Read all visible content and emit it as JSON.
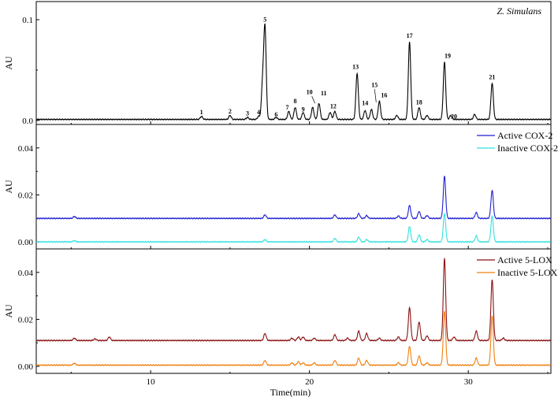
{
  "chart_data": [
    {
      "type": "line",
      "annotation": "Z. Simulans",
      "ylabel": "AU",
      "xlim": [
        2.8,
        35.2
      ],
      "ylim": [
        -0.004,
        0.118
      ],
      "yticks": [
        0.0,
        0.1
      ],
      "ytick_labels": [
        "0.0",
        "0.1"
      ],
      "grid": false,
      "series": [
        {
          "color": "#000000",
          "baseline": 0.001,
          "peaks": [
            [
              13.2,
              0.003
            ],
            [
              15.0,
              0.004
            ],
            [
              16.1,
              0.002
            ],
            [
              16.8,
              0.003
            ],
            [
              17.05,
              0.035
            ],
            [
              17.2,
              0.09
            ],
            [
              17.9,
              0.002
            ],
            [
              18.7,
              0.008
            ],
            [
              19.1,
              0.012
            ],
            [
              19.6,
              0.007
            ],
            [
              20.2,
              0.012
            ],
            [
              20.6,
              0.016
            ],
            [
              21.3,
              0.007
            ],
            [
              21.6,
              0.008
            ],
            [
              23.0,
              0.046
            ],
            [
              23.5,
              0.009
            ],
            [
              23.9,
              0.01
            ],
            [
              24.4,
              0.018
            ],
            [
              25.5,
              0.004
            ],
            [
              26.3,
              0.077
            ],
            [
              26.9,
              0.012
            ],
            [
              27.4,
              0.004
            ],
            [
              28.5,
              0.057
            ],
            [
              28.9,
              0.004
            ],
            [
              30.4,
              0.005
            ],
            [
              31.5,
              0.036
            ]
          ]
        }
      ],
      "peak_labels": [
        {
          "text": "1",
          "x": 13.2,
          "y": 0.006
        },
        {
          "text": "2",
          "x": 15.0,
          "y": 0.007
        },
        {
          "text": "3",
          "x": 16.1,
          "y": 0.005
        },
        {
          "text": "4",
          "x": 16.8,
          "y": 0.006
        },
        {
          "text": "5",
          "x": 17.2,
          "y": 0.098
        },
        {
          "text": "6",
          "x": 17.9,
          "y": 0.004
        },
        {
          "text": "7",
          "x": 18.6,
          "y": 0.011
        },
        {
          "text": "8",
          "x": 19.1,
          "y": 0.017
        },
        {
          "text": "9",
          "x": 19.6,
          "y": 0.009
        },
        {
          "text": "10",
          "x": 20.0,
          "y": 0.026
        },
        {
          "text": "11",
          "x": 20.9,
          "y": 0.025
        },
        {
          "text": "12",
          "x": 21.5,
          "y": 0.012
        },
        {
          "text": "13",
          "x": 22.9,
          "y": 0.051
        },
        {
          "text": "14",
          "x": 23.5,
          "y": 0.015
        },
        {
          "text": "15",
          "x": 24.1,
          "y": 0.033
        },
        {
          "text": "16",
          "x": 24.7,
          "y": 0.023
        },
        {
          "text": "17",
          "x": 26.3,
          "y": 0.082
        },
        {
          "text": "18",
          "x": 26.9,
          "y": 0.016
        },
        {
          "text": "19",
          "x": 28.7,
          "y": 0.062
        },
        {
          "text": "20",
          "x": 29.1,
          "y": 0.002
        },
        {
          "text": "21",
          "x": 31.5,
          "y": 0.041
        }
      ]
    },
    {
      "type": "line",
      "ylabel": "AU",
      "xlim": [
        2.8,
        35.2
      ],
      "ylim": [
        -0.003,
        0.05
      ],
      "yticks": [
        0.0,
        0.02,
        0.04
      ],
      "ytick_labels": [
        "0.00",
        "0.02",
        "0.04"
      ],
      "legend": "top-right",
      "grid": false,
      "series": [
        {
          "name": "Active COX-2",
          "color": "#1f1fd1",
          "baseline": 0.01,
          "peaks": [
            [
              5.2,
              0.0008
            ],
            [
              17.2,
              0.0015
            ],
            [
              21.6,
              0.0015
            ],
            [
              23.1,
              0.002
            ],
            [
              23.6,
              0.0012
            ],
            [
              25.6,
              0.001
            ],
            [
              26.3,
              0.0055
            ],
            [
              26.9,
              0.003
            ],
            [
              27.4,
              0.0012
            ],
            [
              28.5,
              0.018
            ],
            [
              30.5,
              0.0025
            ],
            [
              31.5,
              0.012
            ]
          ]
        },
        {
          "name": "Inactive COX-2",
          "color": "#33e1e1",
          "baseline": 0.0,
          "peaks": [
            [
              5.2,
              0.0005
            ],
            [
              17.2,
              0.001
            ],
            [
              21.6,
              0.0015
            ],
            [
              23.1,
              0.002
            ],
            [
              23.6,
              0.001
            ],
            [
              26.3,
              0.0065
            ],
            [
              26.9,
              0.003
            ],
            [
              27.4,
              0.001
            ],
            [
              28.5,
              0.012
            ],
            [
              30.5,
              0.0025
            ],
            [
              31.5,
              0.011
            ]
          ]
        }
      ]
    },
    {
      "type": "line",
      "ylabel": "AU",
      "xlabel": "Time(min)",
      "xlim": [
        2.8,
        35.2
      ],
      "ylim": [
        -0.003,
        0.05
      ],
      "xticks": [
        10,
        20,
        30
      ],
      "xtick_labels": [
        "10",
        "20",
        "30"
      ],
      "yticks": [
        0.0,
        0.02,
        0.04
      ],
      "ytick_labels": [
        "0.00",
        "0.02",
        "0.04"
      ],
      "legend": "top-right",
      "grid": false,
      "series": [
        {
          "name": "Active 5-LOX",
          "color": "#8b1010",
          "baseline": 0.011,
          "peaks": [
            [
              5.2,
              0.001
            ],
            [
              6.5,
              0.0007
            ],
            [
              7.4,
              0.0015
            ],
            [
              17.2,
              0.003
            ],
            [
              18.9,
              0.001
            ],
            [
              19.3,
              0.0015
            ],
            [
              19.6,
              0.0015
            ],
            [
              20.3,
              0.001
            ],
            [
              21.6,
              0.0025
            ],
            [
              22.4,
              0.001
            ],
            [
              23.1,
              0.004
            ],
            [
              23.6,
              0.003
            ],
            [
              24.4,
              0.001
            ],
            [
              25.6,
              0.0015
            ],
            [
              26.3,
              0.014
            ],
            [
              26.9,
              0.008
            ],
            [
              27.4,
              0.002
            ],
            [
              28.5,
              0.035
            ],
            [
              29.1,
              0.0015
            ],
            [
              30.5,
              0.004
            ],
            [
              31.5,
              0.026
            ],
            [
              32.2,
              0.001
            ]
          ]
        },
        {
          "name": "Inactive 5-LOX",
          "color": "#f08010",
          "baseline": 0.0005,
          "peaks": [
            [
              5.2,
              0.0008
            ],
            [
              17.2,
              0.002
            ],
            [
              18.9,
              0.001
            ],
            [
              19.3,
              0.0015
            ],
            [
              19.6,
              0.001
            ],
            [
              20.3,
              0.001
            ],
            [
              21.6,
              0.002
            ],
            [
              23.1,
              0.003
            ],
            [
              23.6,
              0.002
            ],
            [
              25.6,
              0.001
            ],
            [
              26.3,
              0.008
            ],
            [
              26.9,
              0.004
            ],
            [
              27.4,
              0.001
            ],
            [
              28.5,
              0.023
            ],
            [
              30.5,
              0.003
            ],
            [
              31.5,
              0.021
            ]
          ]
        }
      ]
    }
  ]
}
